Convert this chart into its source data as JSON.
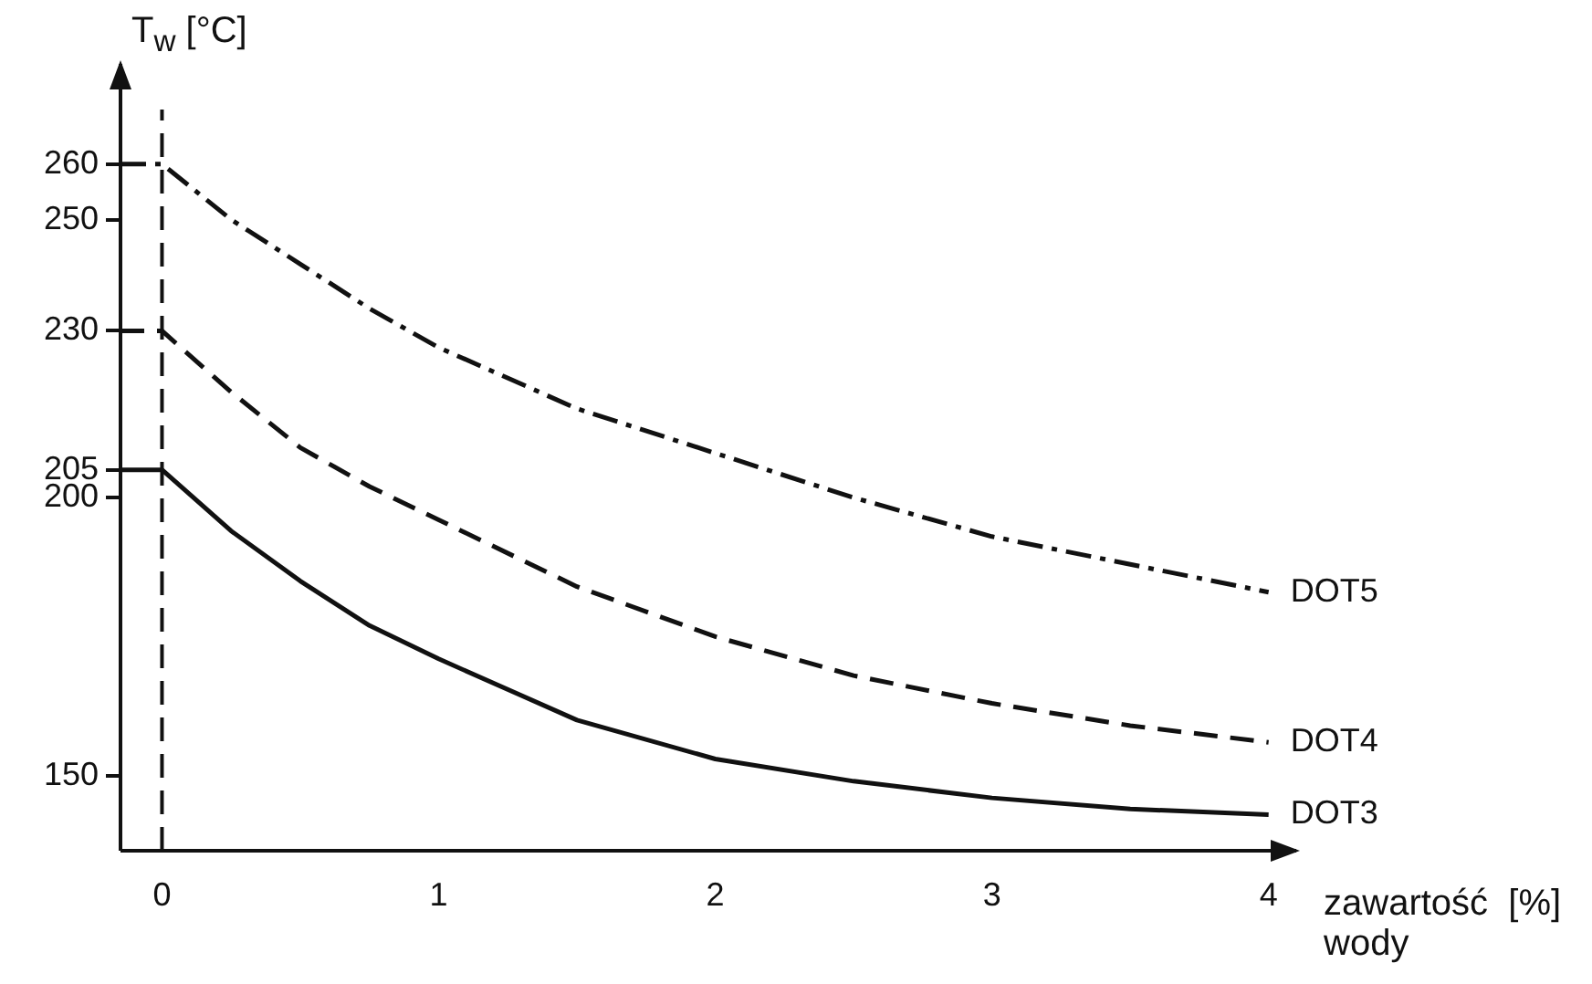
{
  "chart_data": {
    "type": "line",
    "xlabel": "zawartość  [%]\nwody",
    "ylabel": "T$_{w}$ [°C]",
    "xlim": [
      -0.15,
      4.1
    ],
    "ylim": [
      136.5,
      278
    ],
    "xticks": [
      0,
      1,
      2,
      3,
      4
    ],
    "yticks": [
      150,
      200,
      205,
      230,
      250,
      260
    ],
    "grid": false,
    "legend": false,
    "marker": "none",
    "ref_lines": [
      {
        "axis": "x",
        "value": 0,
        "line_style": "dashed",
        "color": "#111111"
      }
    ],
    "series": [
      {
        "name": "DOT5",
        "color": "#111111",
        "line_style": "dashdot",
        "x": [
          -0.15,
          0,
          0.25,
          0.5,
          0.75,
          1,
          1.5,
          2,
          2.5,
          3,
          3.5,
          4
        ],
        "values": [
          260,
          260,
          250,
          242,
          234,
          227,
          216,
          208,
          200,
          193,
          188,
          183
        ]
      },
      {
        "name": "DOT4",
        "color": "#111111",
        "line_style": "dashed",
        "x": [
          -0.15,
          0,
          0.25,
          0.5,
          0.75,
          1,
          1.5,
          2,
          2.5,
          3,
          3.5,
          4
        ],
        "values": [
          230,
          230,
          219,
          209,
          202,
          196,
          184,
          175,
          168,
          163,
          159,
          156
        ]
      },
      {
        "name": "DOT3",
        "color": "#111111",
        "line_style": "solid",
        "x": [
          -0.15,
          0,
          0.25,
          0.5,
          0.75,
          1,
          1.5,
          2,
          2.5,
          3,
          3.5,
          4
        ],
        "values": [
          205,
          205,
          194,
          185,
          177,
          171,
          160,
          153,
          149,
          146,
          144,
          143
        ]
      }
    ]
  }
}
